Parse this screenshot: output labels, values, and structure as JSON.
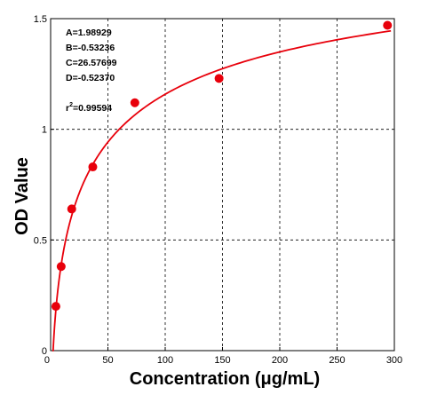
{
  "chart_data": {
    "type": "scatter",
    "xlabel": "Concentration (μg/mL)",
    "ylabel": "OD Value",
    "xlim": [
      0,
      300
    ],
    "ylim": [
      0,
      1.5
    ],
    "x_ticks": [
      0,
      50,
      100,
      150,
      200,
      250,
      300
    ],
    "y_ticks": [
      0,
      0.5,
      1,
      1.5
    ],
    "x_tick_labels": [
      "0",
      "50",
      "100",
      "150",
      "200",
      "250",
      "300"
    ],
    "y_tick_labels": [
      "0",
      "0.5",
      "1",
      "1.5"
    ],
    "grid": true,
    "series": [
      {
        "type": "scatter",
        "color": "#e8000b",
        "points": [
          {
            "x": 4.6,
            "y": 0.2
          },
          {
            "x": 9.2,
            "y": 0.38
          },
          {
            "x": 18.4,
            "y": 0.64
          },
          {
            "x": 36.8,
            "y": 0.83
          },
          {
            "x": 73.5,
            "y": 1.12
          },
          {
            "x": 147,
            "y": 1.23
          },
          {
            "x": 294,
            "y": 1.47
          }
        ]
      },
      {
        "type": "line",
        "color": "#e8000b",
        "model": "4PL",
        "params": {
          "A": 1.98929,
          "B": -0.53236,
          "C": 26.57699,
          "D": -0.5237
        }
      }
    ],
    "annotations": {
      "params_text": [
        "A=1.98929",
        "B=-0.53236",
        "C=26.57699",
        "D=-0.52370"
      ],
      "r2_label": "r",
      "r2_sup": "2",
      "r2_value": "=0.99594"
    }
  }
}
